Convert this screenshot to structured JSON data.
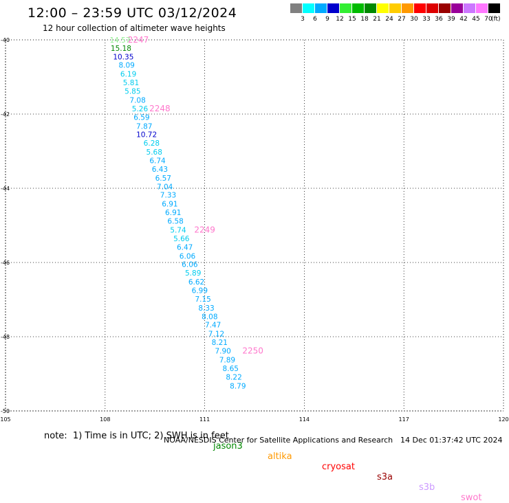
{
  "header": {
    "title": "12:00 – 23:59 UTC 03/12/2024",
    "subtitle": "12 hour collection of altimeter wave heights"
  },
  "legend": {
    "unit": "(ft)",
    "colors": [
      "#808080",
      "#00ffff",
      "#00aaff",
      "#0000cc",
      "#33ee33",
      "#00bb00",
      "#008800",
      "#ffff00",
      "#ffcc00",
      "#ff9900",
      "#ff0000",
      "#dd0000",
      "#990000",
      "#990099",
      "#cc77ff",
      "#ff77ff",
      "#000000"
    ],
    "levels": [
      "3",
      "6",
      "9",
      "12",
      "15",
      "18",
      "21",
      "24",
      "27",
      "30",
      "33",
      "36",
      "39",
      "42",
      "45",
      "70"
    ]
  },
  "chart_data": {
    "type": "scatter",
    "title": "12:00 – 23:59 UTC 03/12/2024",
    "subtitle": "12 hour collection of altimeter wave heights",
    "xlabel": "",
    "ylabel": "",
    "xlim": [
      105,
      120
    ],
    "ylim": [
      -50,
      -40
    ],
    "xticks": [
      "105",
      "108",
      "111",
      "114",
      "117",
      "120"
    ],
    "yticks": [
      "-40",
      "-42",
      "-44",
      "-46",
      "-48",
      "-50"
    ],
    "grid": true,
    "units": "ft",
    "points": [
      {
        "x": 108.45,
        "y": -40.0,
        "label": "14.57",
        "color": "#90ee90"
      },
      {
        "x": 108.48,
        "y": -40.22,
        "label": "15.18",
        "color": "#008800"
      },
      {
        "x": 108.55,
        "y": -40.45,
        "label": "10.35",
        "color": "#0000cc"
      },
      {
        "x": 108.65,
        "y": -40.68,
        "label": "8.09",
        "color": "#00aaff"
      },
      {
        "x": 108.7,
        "y": -40.92,
        "label": "6.19",
        "color": "#00ccee"
      },
      {
        "x": 108.78,
        "y": -41.15,
        "label": "5.81",
        "color": "#00ccee"
      },
      {
        "x": 108.83,
        "y": -41.38,
        "label": "5.85",
        "color": "#00ccee"
      },
      {
        "x": 108.98,
        "y": -41.62,
        "label": "7.08",
        "color": "#00aaff"
      },
      {
        "x": 109.05,
        "y": -41.85,
        "label": "5.26",
        "color": "#00ccee"
      },
      {
        "x": 109.1,
        "y": -42.08,
        "label": "6.59",
        "color": "#00aaff"
      },
      {
        "x": 109.18,
        "y": -42.32,
        "label": "7.87",
        "color": "#00aaff"
      },
      {
        "x": 109.25,
        "y": -42.55,
        "label": "10.72",
        "color": "#0000cc"
      },
      {
        "x": 109.4,
        "y": -42.78,
        "label": "6.28",
        "color": "#00ccee"
      },
      {
        "x": 109.48,
        "y": -43.02,
        "label": "5.68",
        "color": "#00ccee"
      },
      {
        "x": 109.58,
        "y": -43.25,
        "label": "6.74",
        "color": "#00aaff"
      },
      {
        "x": 109.65,
        "y": -43.48,
        "label": "6.43",
        "color": "#00aaff"
      },
      {
        "x": 109.75,
        "y": -43.72,
        "label": "6.57",
        "color": "#00aaff"
      },
      {
        "x": 109.8,
        "y": -43.95,
        "label": "7.04",
        "color": "#00aaff"
      },
      {
        "x": 109.9,
        "y": -44.18,
        "label": "7.33",
        "color": "#00aaff"
      },
      {
        "x": 109.95,
        "y": -44.42,
        "label": "6.91",
        "color": "#00aaff"
      },
      {
        "x": 110.05,
        "y": -44.65,
        "label": "6.91",
        "color": "#00aaff"
      },
      {
        "x": 110.12,
        "y": -44.88,
        "label": "6.58",
        "color": "#00aaff"
      },
      {
        "x": 110.2,
        "y": -45.12,
        "label": "5.74",
        "color": "#00ccee"
      },
      {
        "x": 110.3,
        "y": -45.35,
        "label": "5.66",
        "color": "#00ccee"
      },
      {
        "x": 110.4,
        "y": -45.58,
        "label": "6.47",
        "color": "#00aaff"
      },
      {
        "x": 110.48,
        "y": -45.82,
        "label": "6.06",
        "color": "#00aaff"
      },
      {
        "x": 110.55,
        "y": -46.05,
        "label": "6.06",
        "color": "#00aaff"
      },
      {
        "x": 110.65,
        "y": -46.28,
        "label": "5.89",
        "color": "#00ccee"
      },
      {
        "x": 110.75,
        "y": -46.52,
        "label": "6.62",
        "color": "#00aaff"
      },
      {
        "x": 110.85,
        "y": -46.75,
        "label": "6.99",
        "color": "#00aaff"
      },
      {
        "x": 110.95,
        "y": -46.98,
        "label": "7.15",
        "color": "#00aaff"
      },
      {
        "x": 111.05,
        "y": -47.22,
        "label": "8.33",
        "color": "#00aaff"
      },
      {
        "x": 111.15,
        "y": -47.45,
        "label": "8.08",
        "color": "#00aaff"
      },
      {
        "x": 111.25,
        "y": -47.68,
        "label": "7.47",
        "color": "#00aaff"
      },
      {
        "x": 111.35,
        "y": -47.92,
        "label": "7.12",
        "color": "#00aaff"
      },
      {
        "x": 111.45,
        "y": -48.15,
        "label": "8.21",
        "color": "#00aaff"
      },
      {
        "x": 111.55,
        "y": -48.38,
        "label": "7.90",
        "color": "#00aaff"
      },
      {
        "x": 111.68,
        "y": -48.62,
        "label": "7.89",
        "color": "#00aaff"
      },
      {
        "x": 111.78,
        "y": -48.85,
        "label": "8.65",
        "color": "#00aaff"
      },
      {
        "x": 111.88,
        "y": -49.08,
        "label": "8.22",
        "color": "#00aaff"
      },
      {
        "x": 112.0,
        "y": -49.32,
        "label": "8.79",
        "color": "#00aaff"
      }
    ],
    "annotations": [
      {
        "x": 109.0,
        "y": -40.0,
        "text": "2247",
        "color": "#ff77cc"
      },
      {
        "x": 109.65,
        "y": -41.85,
        "text": "2248",
        "color": "#ff77cc"
      },
      {
        "x": 111.0,
        "y": -45.12,
        "text": "2249",
        "color": "#ff77cc"
      },
      {
        "x": 112.45,
        "y": -48.38,
        "text": "2250",
        "color": "#ff77cc"
      }
    ]
  },
  "note": {
    "text": "note:  1) Time is in UTC; 2) SWH is in feet",
    "satellites": [
      {
        "name": "jason3",
        "color": "#008800"
      },
      {
        "name": "altika",
        "color": "#ff9900"
      },
      {
        "name": "cryosat",
        "color": "#ff0000"
      },
      {
        "name": "s3a",
        "color": "#990000"
      },
      {
        "name": "s3b",
        "color": "#cc99ff"
      },
      {
        "name": "swot",
        "color": "#ff77cc"
      }
    ]
  },
  "footer": {
    "credit": "NOAA/NESDIS Center for Satellite Applications and Research",
    "timestamp": "14 Dec 01:37:42 UTC 2024"
  }
}
